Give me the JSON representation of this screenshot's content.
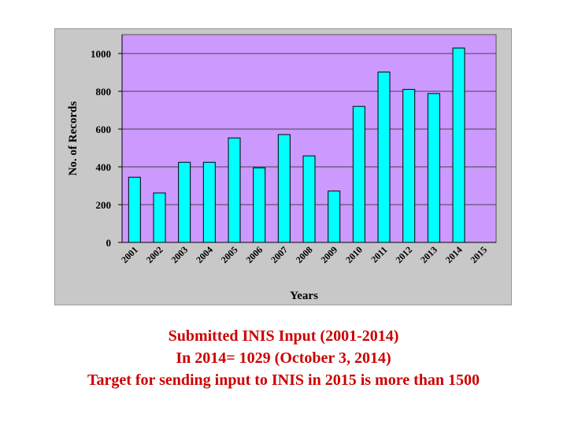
{
  "chart_data": {
    "type": "bar",
    "categories": [
      "2001",
      "2002",
      "2003",
      "2004",
      "2005",
      "2006",
      "2007",
      "2008",
      "2009",
      "2010",
      "2011",
      "2012",
      "2013",
      "2014",
      "2015"
    ],
    "values": [
      345,
      262,
      424,
      424,
      553,
      395,
      571,
      458,
      272,
      720,
      902,
      810,
      788,
      1029,
      null
    ],
    "xlabel": "Years",
    "ylabel": "No. of Records",
    "ylim": [
      0,
      1100
    ],
    "yticks": [
      0,
      200,
      400,
      600,
      800,
      1000
    ],
    "grid": "horizontal",
    "legend": "none",
    "colors": {
      "bar": "#00ffff",
      "plot_background": "#cc99ff",
      "frame_background": "#c8c8c8",
      "caption": "#cc0000"
    }
  },
  "caption": {
    "line1": "Submitted INIS Input (2001-2014)",
    "line2": "In 2014= 1029  (October 3, 2014)",
    "line3": "Target for sending input to INIS in 2015 is more than 1500"
  }
}
